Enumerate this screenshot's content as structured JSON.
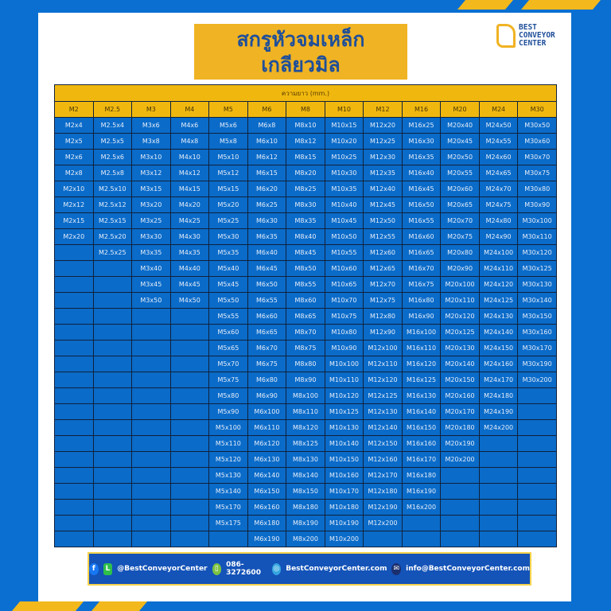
{
  "title": {
    "line1": "สกรูหัวจมเหล็ก",
    "line2": "เกลียวมิล"
  },
  "logo": {
    "line1": "BEST",
    "line2": "CONVEYOR",
    "line3": "CENTER"
  },
  "colors": {
    "blue": "#0a6bc9",
    "yellow": "#f0b80f",
    "frame": "#0a6fd1"
  },
  "table": {
    "caption": "ความยาว (mm.)",
    "headers": [
      "M2",
      "M2.5",
      "M3",
      "M4",
      "M5",
      "M6",
      "M8",
      "M10",
      "M12",
      "M16",
      "M20",
      "M24",
      "M30"
    ],
    "columns": [
      [
        "M2x4",
        "M2x5",
        "M2x6",
        "M2x8",
        "M2x10",
        "M2x12",
        "M2x15",
        "M2x20"
      ],
      [
        "M2.5x4",
        "M2.5x5",
        "M2.5x6",
        "M2.5x8",
        "M2.5x10",
        "M2.5x12",
        "M2.5x15",
        "M2.5x20",
        "M2.5x25"
      ],
      [
        "M3x6",
        "M3x8",
        "M3x10",
        "M3x12",
        "M3x15",
        "M3x20",
        "M3x25",
        "M3x30",
        "M3x35",
        "M3x40",
        "M3x45",
        "M3x50"
      ],
      [
        "M4x6",
        "M4x8",
        "M4x10",
        "M4x12",
        "M4x15",
        "M4x20",
        "M4x25",
        "M4x30",
        "M4x35",
        "M4x40",
        "M4x45",
        "M4x50"
      ],
      [
        "M5x6",
        "M5x8",
        "M5x10",
        "M5x12",
        "M5x15",
        "M5x20",
        "M5x25",
        "M5x30",
        "M5x35",
        "M5x40",
        "M5x45",
        "M5x50",
        "M5x55",
        "M5x60",
        "M5x65",
        "M5x70",
        "M5x75",
        "M5x80",
        "M5x90",
        "M5x100",
        "M5x110",
        "M5x120",
        "M5x130",
        "M5x140",
        "M5x170",
        "M5x175"
      ],
      [
        "M6x8",
        "M6x10",
        "M6x12",
        "M6x15",
        "M6x20",
        "M6x25",
        "M6x30",
        "M6x35",
        "M6x40",
        "M6x45",
        "M6x50",
        "M6x55",
        "M6x60",
        "M6x65",
        "M6x70",
        "M6x75",
        "M6x80",
        "M6x90",
        "M6x100",
        "M6x110",
        "M6x120",
        "M6x130",
        "M6x140",
        "M6x150",
        "M6x160",
        "M6x180",
        "M6x190"
      ],
      [
        "M8x10",
        "M8x12",
        "M8x15",
        "M8x20",
        "M8x25",
        "M8x30",
        "M8x35",
        "M8x40",
        "M8x45",
        "M8x50",
        "M8x55",
        "M8x60",
        "M8x65",
        "M8x70",
        "M8x75",
        "M8x80",
        "M8x90",
        "M8x100",
        "M8x110",
        "M8x120",
        "M8x125",
        "M8x130",
        "M8x140",
        "M8x150",
        "M8x180",
        "M8x190",
        "M8x200"
      ],
      [
        "M10x15",
        "M10x20",
        "M10x25",
        "M10x30",
        "M10x35",
        "M10x40",
        "M10x45",
        "M10x50",
        "M10x55",
        "M10x60",
        "M10x65",
        "M10x70",
        "M10x75",
        "M10x80",
        "M10x90",
        "M10x100",
        "M10x110",
        "M10x120",
        "M10x125",
        "M10x130",
        "M10x140",
        "M10x150",
        "M10x160",
        "M10x170",
        "M10x180",
        "M10x190",
        "M10x200"
      ],
      [
        "M12x20",
        "M12x25",
        "M12x30",
        "M12x35",
        "M12x40",
        "M12x45",
        "M12x50",
        "M12x55",
        "M12x60",
        "M12x65",
        "M12x70",
        "M12x75",
        "M12x80",
        "M12x90",
        "M12x100",
        "M12x110",
        "M12x120",
        "M12x125",
        "M12x130",
        "M12x140",
        "M12x150",
        "M12x160",
        "M12x170",
        "M12x180",
        "M12x190",
        "M12x200"
      ],
      [
        "M16x25",
        "M16x30",
        "M16x35",
        "M16x40",
        "M16x45",
        "M16x50",
        "M16x55",
        "M16x60",
        "M16x65",
        "M16x70",
        "M16x75",
        "M16x80",
        "M16x90",
        "M16x100",
        "M16x110",
        "M16x120",
        "M16x125",
        "M16x130",
        "M16x140",
        "M16x150",
        "M16x160",
        "M16x170",
        "M16x180",
        "M16x190",
        "M16x200"
      ],
      [
        "M20x40",
        "M20x45",
        "M20x50",
        "M20x55",
        "M20x60",
        "M20x65",
        "M20x70",
        "M20x75",
        "M20x80",
        "M20x90",
        "M20x100",
        "M20x110",
        "M20x120",
        "M20x125",
        "M20x130",
        "M20x140",
        "M20x150",
        "M20x160",
        "M20x170",
        "M20x180",
        "M20x190",
        "M20x200"
      ],
      [
        "M24x50",
        "M24x55",
        "M24x60",
        "M24x65",
        "M24x70",
        "M24x75",
        "M24x80",
        "M24x90",
        "M24x100",
        "M24x110",
        "M24x120",
        "M24x125",
        "M24x130",
        "M24x140",
        "M24x150",
        "M24x160",
        "M24x170",
        "M24x180",
        "M24x190",
        "M24x200"
      ],
      [
        "M30x50",
        "M30x60",
        "M30x70",
        "M30x75",
        "M30x80",
        "M30x90",
        "M30x100",
        "M30x110",
        "M30x120",
        "M30x125",
        "M30x130",
        "M30x140",
        "M30x150",
        "M30x160",
        "M30x170",
        "M30x190",
        "M30x200"
      ]
    ]
  },
  "footer": {
    "social": "@BestConveyorCenter",
    "phone": "086-3272600",
    "website": "BestConveyorCenter.com",
    "email": "info@BestConveyorCenter.com"
  }
}
